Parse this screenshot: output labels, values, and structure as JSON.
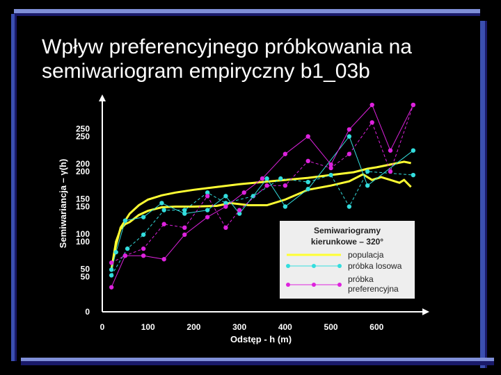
{
  "slide": {
    "title_line1": "Wpływ preferencyjnego próbkowania na",
    "title_line2": "semiwariogram empiryczny b1_03b",
    "colors": {
      "bar_dark": "#1a1a6a",
      "bar_mid": "#3b4fb0",
      "bar_light": "#7f8fd8"
    }
  },
  "chart_data": {
    "type": "line",
    "xlabel": "Odstęp - h (m)",
    "ylabel": "Semiwariancja – γ(h)",
    "xlim": [
      0,
      700
    ],
    "ylim": [
      0,
      300
    ],
    "x_ticks": [
      0,
      100,
      200,
      300,
      400,
      500,
      600
    ],
    "y_ticks": [
      0,
      50,
      100,
      150,
      200,
      250
    ],
    "y_ticks_ghost": [
      50,
      100,
      150,
      200,
      250
    ],
    "legend": {
      "title_line1": "Semiwariogramy",
      "title_line2": "kierunkowe – 320°",
      "placement": "bottom-right"
    },
    "series": [
      {
        "name": "populacja",
        "color": "#ffff33",
        "markers": false,
        "lines": [
          {
            "x": [
              20,
              30,
              40,
              50,
              60,
              80,
              100,
              130,
              160,
              200,
              250,
              300,
              350,
              400,
              450,
              500,
              550,
              580,
              600,
              630,
              660,
              675
            ],
            "y": [
              60,
              95,
              120,
              130,
              140,
              152,
              160,
              166,
              170,
              174,
              178,
              182,
              185,
              188,
              191,
              195,
              199,
              204,
              206,
              210,
              214,
              212
            ]
          },
          {
            "x": [
              20,
              30,
              40,
              50,
              60,
              80,
              100,
              130,
              160,
              200,
              250,
              280,
              320,
              360,
              400,
              450,
              500,
              540,
              570,
              590,
              610,
              630,
              650,
              660,
              675
            ],
            "y": [
              60,
              100,
              118,
              125,
              128,
              138,
              144,
              149,
              150,
              150,
              151,
              155,
              152,
              152,
              160,
              174,
              180,
              186,
              196,
              188,
              192,
              188,
              184,
              188,
              178
            ]
          }
        ]
      },
      {
        "name": "próbka losowa",
        "color": "#33dddd",
        "markers": true,
        "lines": [
          {
            "x": [
              20,
              30,
              50,
              90,
              130,
              180,
              230,
              270,
              300,
              360,
              400,
              450,
              540,
              580,
              680
            ],
            "y": [
              60,
              85,
              130,
              135,
              155,
              140,
              145,
              165,
              140,
              190,
              150,
              175,
              250,
              180,
              230
            ]
          },
          {
            "x": [
              20,
              55,
              90,
              135,
              180,
              230,
              270,
              330,
              390,
              450,
              500,
              540,
              580,
              680
            ],
            "y": [
              52,
              90,
              110,
              145,
              145,
              170,
              155,
              165,
              190,
              185,
              195,
              150,
              200,
              195
            ]
          }
        ]
      },
      {
        "name": "próbka preferencyjna",
        "color": "#dd22dd",
        "markers": true,
        "lines": [
          {
            "x": [
              20,
              50,
              90,
              135,
              180,
              230,
              270,
              310,
              350,
              400,
              450,
              500,
              540,
              590,
              630,
              680
            ],
            "y": [
              35,
              80,
              80,
              75,
              110,
              135,
              150,
              170,
              190,
              225,
              250,
              210,
              260,
              295,
              230,
              295
            ]
          },
          {
            "x": [
              20,
              50,
              90,
              135,
              180,
              230,
              270,
              300,
              360,
              400,
              450,
              500,
              540,
              590,
              630,
              680
            ],
            "y": [
              70,
              80,
              90,
              125,
              120,
              165,
              120,
              145,
              180,
              180,
              215,
              205,
              225,
              270,
              200,
              295
            ]
          }
        ]
      }
    ]
  }
}
